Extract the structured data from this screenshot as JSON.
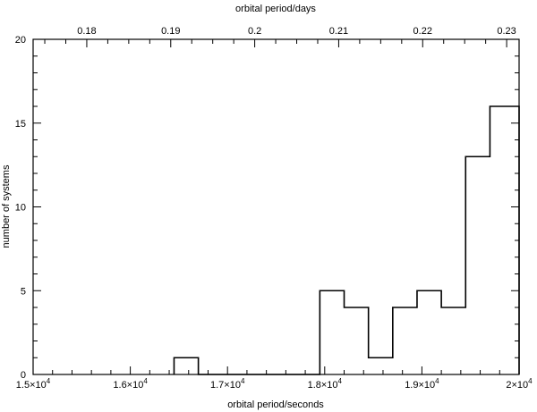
{
  "chart_data": {
    "type": "histogram",
    "xlabel": "orbital period/seconds",
    "x2label": "orbital period/days",
    "ylabel": "number of systems",
    "xlim": [
      15000,
      20000
    ],
    "ylim": [
      0,
      20
    ],
    "x_ticks": [
      15000,
      16000,
      17000,
      18000,
      19000,
      20000
    ],
    "x_tick_labels": [
      {
        "mantissa": "1.5",
        "exponent": "4"
      },
      {
        "mantissa": "1.6",
        "exponent": "4"
      },
      {
        "mantissa": "1.7",
        "exponent": "4"
      },
      {
        "mantissa": "1.8",
        "exponent": "4"
      },
      {
        "mantissa": "1.9",
        "exponent": "4"
      },
      {
        "mantissa": "2",
        "exponent": "4"
      }
    ],
    "x_minor_step": 200,
    "y_ticks": [
      0,
      5,
      10,
      15,
      20
    ],
    "y_tick_labels": [
      "0",
      "5",
      "10",
      "15",
      "20"
    ],
    "y_minor_step": 1,
    "top_ticks": [
      0.18,
      0.19,
      0.2,
      0.21,
      0.22,
      0.23
    ],
    "top_tick_labels": [
      "0.18",
      "0.19",
      "0.2",
      "0.21",
      "0.22",
      "0.23"
    ],
    "top_minor_step": 0.0025,
    "seconds_per_day": 86400,
    "bins": [
      {
        "x0": 16450,
        "x1": 16700,
        "count": 1
      },
      {
        "x0": 16700,
        "x1": 17950,
        "count": 0
      },
      {
        "x0": 17950,
        "x1": 18200,
        "count": 5
      },
      {
        "x0": 18200,
        "x1": 18450,
        "count": 4
      },
      {
        "x0": 18450,
        "x1": 18700,
        "count": 1
      },
      {
        "x0": 18700,
        "x1": 18950,
        "count": 4
      },
      {
        "x0": 18950,
        "x1": 19200,
        "count": 5
      },
      {
        "x0": 19200,
        "x1": 19450,
        "count": 4
      },
      {
        "x0": 19450,
        "x1": 19700,
        "count": 13
      },
      {
        "x0": 19700,
        "x1": 20000,
        "count": 16
      }
    ],
    "grid": false,
    "legend": "none"
  }
}
